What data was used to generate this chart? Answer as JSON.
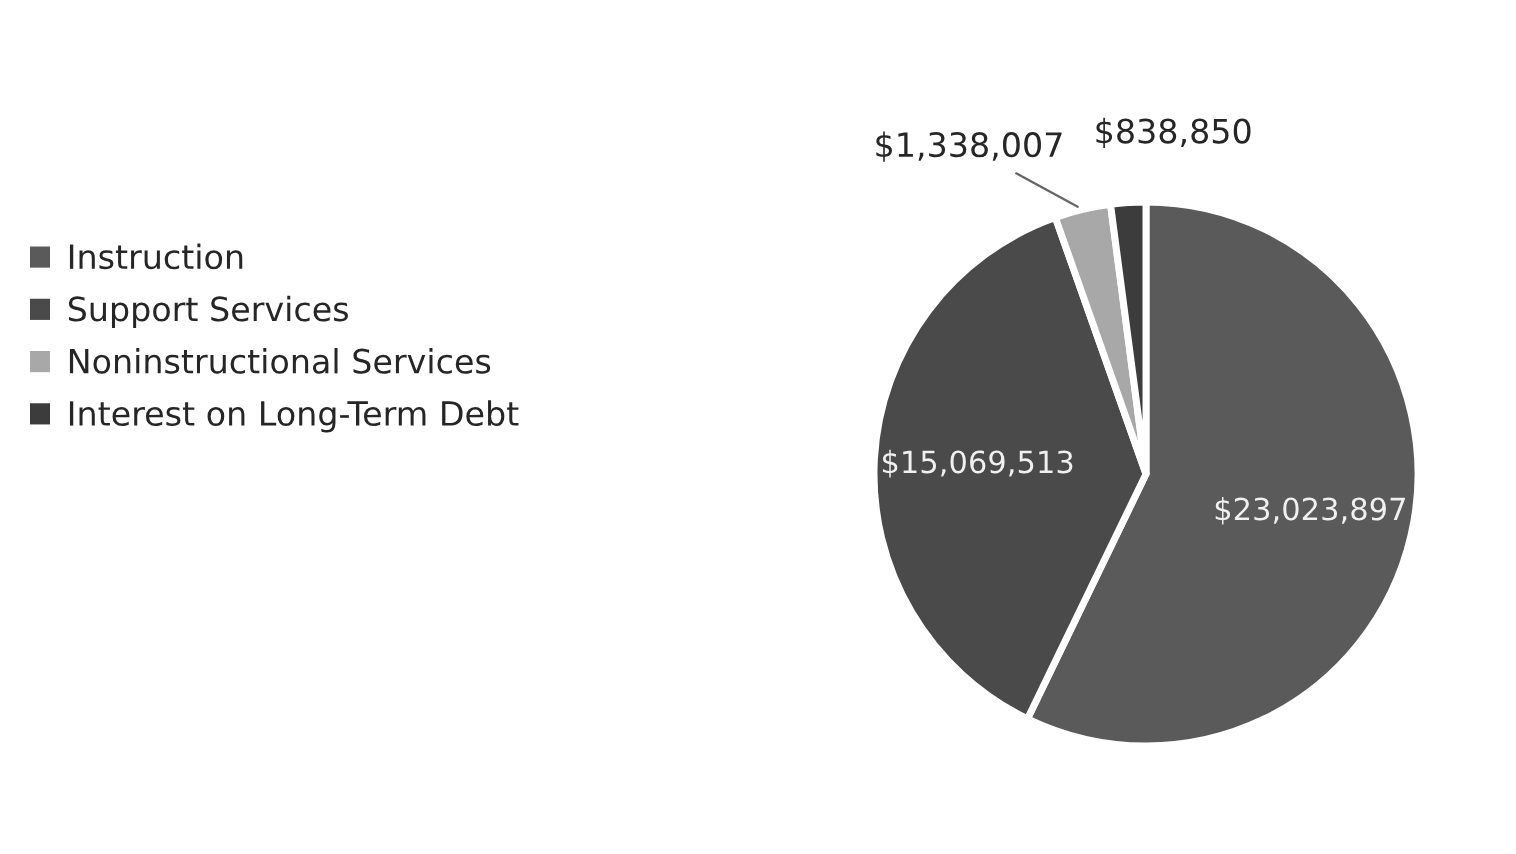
{
  "chart_data": {
    "type": "pie",
    "categories": [
      "Instruction",
      "Support Services",
      "Noninstructional Services",
      "Interest on Long-Term Debt"
    ],
    "values": [
      23023897,
      15069513,
      1338007,
      838850
    ],
    "value_labels": [
      "$23,023,897",
      "$15,069,513",
      "$1,338,007",
      "$838,850"
    ],
    "colors": [
      "#5a5a5a",
      "#4a4a4a",
      "#a8a8a8",
      "#3c3c3c"
    ],
    "legend": "left"
  }
}
